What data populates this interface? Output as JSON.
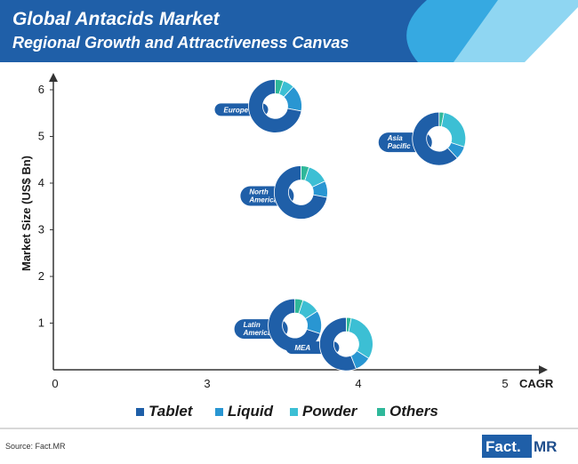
{
  "header": {
    "title": "Global Antacids Market",
    "subtitle": "Regional Growth and Attractiveness Canvas"
  },
  "colors": {
    "header_bg": "#1f5fa8",
    "Tablet": "#1f5fa8",
    "Liquid": "#2996d2",
    "Powder": "#3cbfd4",
    "Others": "#2fb89a",
    "label_bg": "#1f5fa8",
    "bubble_center": "#ffffff"
  },
  "chart_data": {
    "type": "scatter",
    "subtype": "bubble-donut",
    "title": "Global Antacids Market",
    "subtitle": "Regional Growth and Attractiveness Canvas",
    "xlabel": "CAGR",
    "ylabel": "Market Size (US$ Bn)",
    "xticks": [
      "0",
      "3",
      "4",
      "5"
    ],
    "xtick_values": [
      0,
      3,
      4,
      5
    ],
    "yticks": [
      "1",
      "2",
      "3",
      "4",
      "5",
      "6"
    ],
    "ylim": [
      0,
      6.3
    ],
    "legend": [
      "Tablet",
      "Liquid",
      "Powder",
      "Others"
    ],
    "legend_position": "bottom",
    "grid": false,
    "points": [
      {
        "region": "Europe",
        "label_lines": [
          "Europe"
        ],
        "x": 3.45,
        "y": 5.65,
        "shares": {
          "Tablet": 0.72,
          "Liquid": 0.16,
          "Powder": 0.07,
          "Others": 0.05
        }
      },
      {
        "region": "Asia Pacific",
        "label_lines": [
          "Asia",
          "Pacific"
        ],
        "x": 4.55,
        "y": 4.95,
        "shares": {
          "Tablet": 0.62,
          "Liquid": 0.08,
          "Powder": 0.27,
          "Others": 0.03
        }
      },
      {
        "region": "North America",
        "label_lines": [
          "North",
          "America"
        ],
        "x": 3.62,
        "y": 3.8,
        "shares": {
          "Tablet": 0.72,
          "Liquid": 0.1,
          "Powder": 0.13,
          "Others": 0.05
        }
      },
      {
        "region": "Latin America",
        "label_lines": [
          "Latin",
          "America"
        ],
        "x": 3.58,
        "y": 0.95,
        "shares": {
          "Tablet": 0.7,
          "Liquid": 0.14,
          "Powder": 0.11,
          "Others": 0.05
        }
      },
      {
        "region": "MEA",
        "label_lines": [
          "MEA"
        ],
        "x": 3.92,
        "y": 0.55,
        "shares": {
          "Tablet": 0.56,
          "Liquid": 0.1,
          "Powder": 0.31,
          "Others": 0.03
        }
      }
    ]
  },
  "footer": {
    "source": "Source: Fact.MR",
    "logo_left": "Fact.",
    "logo_right": "MR"
  }
}
